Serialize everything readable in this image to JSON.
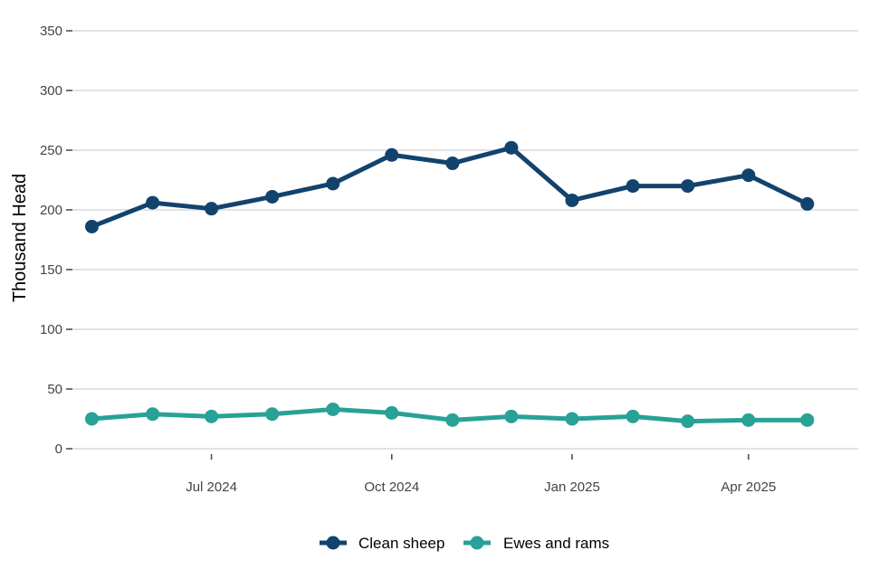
{
  "chart_data": {
    "type": "line",
    "ylabel": "Thousand Head",
    "xlabel": "",
    "ylim": [
      0,
      350
    ],
    "y_ticks": [
      0,
      50,
      100,
      150,
      200,
      250,
      300,
      350
    ],
    "x_ticks": [
      {
        "date": "2024-07-01",
        "label": "Jul 2024"
      },
      {
        "date": "2024-10-01",
        "label": "Oct 2024"
      },
      {
        "date": "2025-01-01",
        "label": "Jan 2025"
      },
      {
        "date": "2025-04-01",
        "label": "Apr 2025"
      }
    ],
    "x": [
      "2024-05-01",
      "2024-06-01",
      "2024-07-01",
      "2024-08-01",
      "2024-09-01",
      "2024-10-01",
      "2024-11-01",
      "2024-12-01",
      "2025-01-01",
      "2025-02-01",
      "2025-03-01",
      "2025-04-01",
      "2025-05-01"
    ],
    "series": [
      {
        "name": "Clean sheep",
        "color": "#12436d",
        "values": [
          186,
          206,
          201,
          211,
          222,
          246,
          239,
          252,
          208,
          220,
          220,
          229,
          205
        ]
      },
      {
        "name": "Ewes and rams",
        "color": "#28a197",
        "values": [
          25,
          29,
          27,
          29,
          33,
          30,
          24,
          27,
          25,
          27,
          23,
          24,
          24
        ]
      }
    ],
    "grid": "horizontal",
    "legend_position": "bottom"
  }
}
